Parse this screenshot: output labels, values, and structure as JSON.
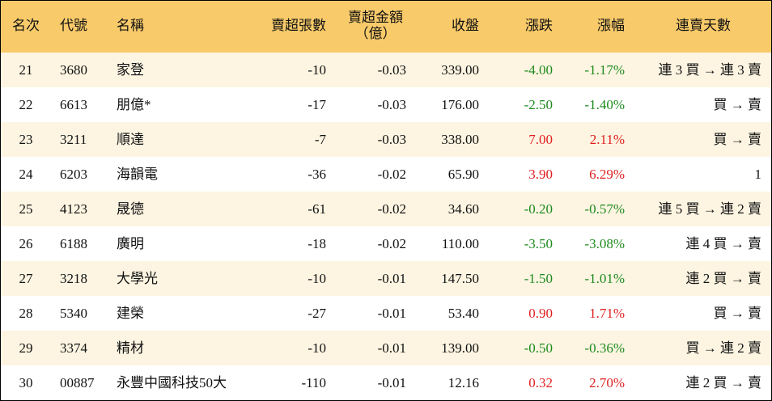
{
  "table": {
    "columns": [
      [
        "名次"
      ],
      [
        "代號"
      ],
      [
        "名稱"
      ],
      [
        "賣超張數"
      ],
      [
        "賣超金額",
        "（億）"
      ],
      [
        "收盤"
      ],
      [
        "漲跌"
      ],
      [
        "漲幅"
      ],
      [
        "連賣天數"
      ]
    ],
    "rows": [
      [
        "21",
        "3680",
        "家登",
        "-10",
        "-0.03",
        "339.00",
        "-4.00",
        "-1.17%",
        "連 3 買 → 連 3 賣"
      ],
      [
        "22",
        "6613",
        "朋億*",
        "-17",
        "-0.03",
        "176.00",
        "-2.50",
        "-1.40%",
        "買 → 賣"
      ],
      [
        "23",
        "3211",
        "順達",
        "-7",
        "-0.03",
        "338.00",
        "7.00",
        "2.11%",
        "買 → 賣"
      ],
      [
        "24",
        "6203",
        "海韻電",
        "-36",
        "-0.02",
        "65.90",
        "3.90",
        "6.29%",
        "1"
      ],
      [
        "25",
        "4123",
        "晟德",
        "-61",
        "-0.02",
        "34.60",
        "-0.20",
        "-0.57%",
        "連 5 買 → 連 2 賣"
      ],
      [
        "26",
        "6188",
        "廣明",
        "-18",
        "-0.02",
        "110.00",
        "-3.50",
        "-3.08%",
        "連 4 買 → 賣"
      ],
      [
        "27",
        "3218",
        "大學光",
        "-10",
        "-0.01",
        "147.50",
        "-1.50",
        "-1.01%",
        "連 2 買 → 賣"
      ],
      [
        "28",
        "5340",
        "建榮",
        "-27",
        "-0.01",
        "53.40",
        "0.90",
        "1.71%",
        "買 → 賣"
      ],
      [
        "29",
        "3374",
        "精材",
        "-10",
        "-0.01",
        "139.00",
        "-0.50",
        "-0.36%",
        "買 → 連 2 賣"
      ],
      [
        "30",
        "00887",
        "永豐中國科技50大",
        "-110",
        "-0.01",
        "12.16",
        "0.32",
        "2.70%",
        "連 2 買 → 賣"
      ]
    ]
  }
}
